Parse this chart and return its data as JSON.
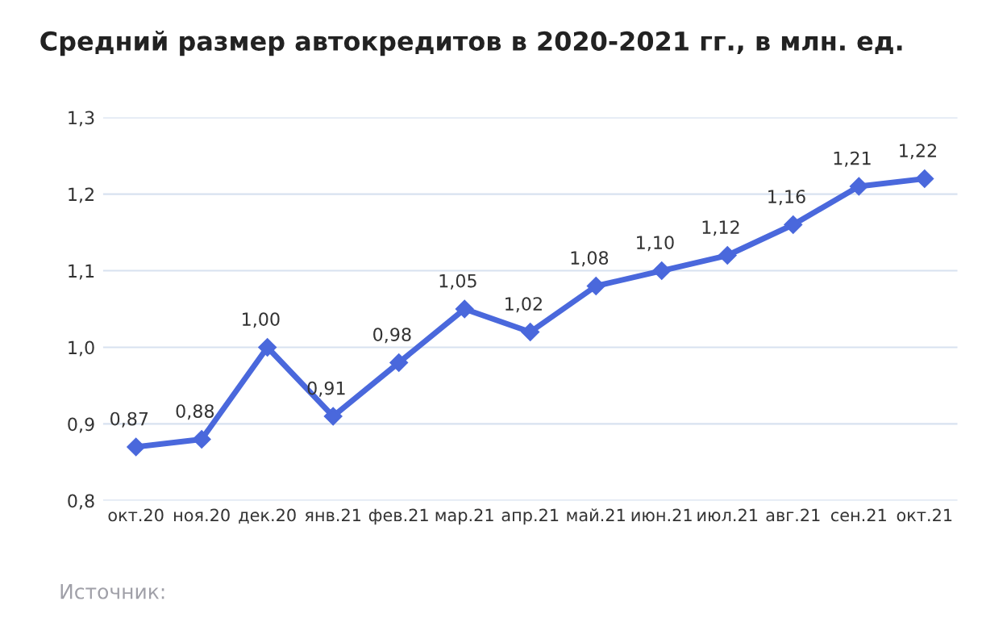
{
  "chart_data": {
    "type": "line",
    "title": "Средний размер автокредитов в 2020-2021 гг., в млн. ед.",
    "categories": [
      "окт.20",
      "ноя.20",
      "дек.20",
      "янв.21",
      "фев.21",
      "мар.21",
      "апр.21",
      "май.21",
      "июн.21",
      "июл.21",
      "авг.21",
      "сен.21",
      "окт.21"
    ],
    "series": [
      {
        "color": "#4a68dc",
        "values": [
          0.87,
          0.88,
          1.0,
          0.91,
          0.98,
          1.05,
          1.02,
          1.08,
          1.1,
          1.12,
          1.16,
          1.21,
          1.22
        ],
        "value_labels": [
          "0,87",
          "0,88",
          "1,00",
          "0,91",
          "0,98",
          "1,05",
          "1,02",
          "1,08",
          "1,10",
          "1,12",
          "1,16",
          "1,21",
          "1,22"
        ]
      }
    ],
    "ylim": [
      0.8,
      1.3
    ],
    "yticks": [
      {
        "value": 0.8,
        "label": "0,8"
      },
      {
        "value": 0.9,
        "label": "0,9"
      },
      {
        "value": 1.0,
        "label": "1,0"
      },
      {
        "value": 1.1,
        "label": "1,1"
      },
      {
        "value": 1.2,
        "label": "1,2"
      },
      {
        "value": 1.3,
        "label": "1,3"
      }
    ],
    "grid": "y",
    "marker": "diamond",
    "line_style": "solid",
    "annotations": [
      "Источник:"
    ]
  }
}
